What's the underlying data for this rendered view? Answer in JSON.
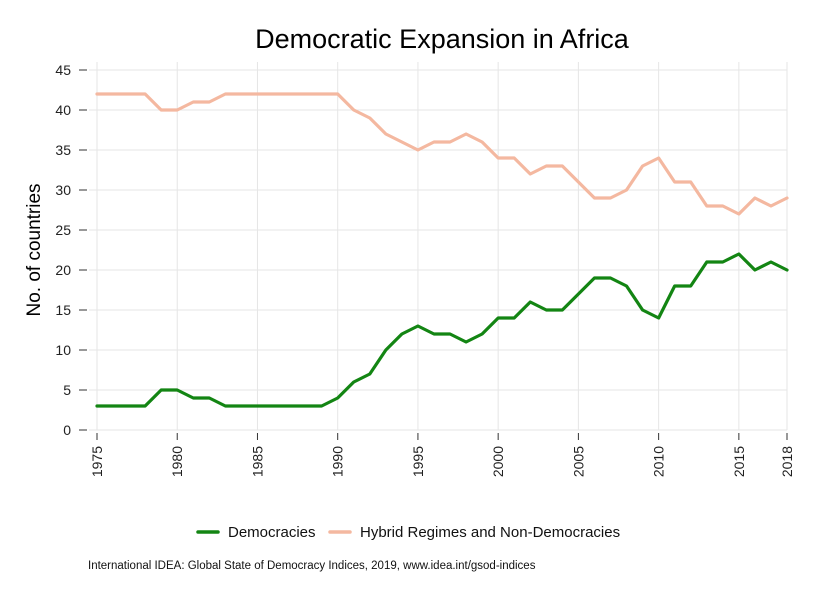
{
  "chart_data": {
    "type": "line",
    "title": "Democratic Expansion in Africa",
    "xlabel": "",
    "ylabel": "No. of countries",
    "xlim": [
      1975,
      2018
    ],
    "ylim": [
      0,
      45
    ],
    "y_ticks": [
      0,
      5,
      10,
      15,
      20,
      25,
      30,
      35,
      40,
      45
    ],
    "x_ticks": [
      1975,
      1980,
      1985,
      1990,
      1995,
      2000,
      2005,
      2010,
      2015,
      2018
    ],
    "grid": true,
    "legend_position": "bottom",
    "x": [
      1975,
      1976,
      1977,
      1978,
      1979,
      1980,
      1981,
      1982,
      1983,
      1984,
      1985,
      1986,
      1987,
      1988,
      1989,
      1990,
      1991,
      1992,
      1993,
      1994,
      1995,
      1996,
      1997,
      1998,
      1999,
      2000,
      2001,
      2002,
      2003,
      2004,
      2005,
      2006,
      2007,
      2008,
      2009,
      2010,
      2011,
      2012,
      2013,
      2014,
      2015,
      2016,
      2017,
      2018
    ],
    "series": [
      {
        "name": "Democracies",
        "color": "#138513",
        "values": [
          3,
          3,
          3,
          3,
          5,
          5,
          4,
          4,
          3,
          3,
          3,
          3,
          3,
          3,
          3,
          4,
          6,
          7,
          10,
          12,
          13,
          12,
          12,
          11,
          12,
          14,
          14,
          16,
          15,
          15,
          17,
          19,
          19,
          18,
          15,
          14,
          18,
          18,
          21,
          21,
          22,
          20,
          21,
          20
        ]
      },
      {
        "name": "Hybrid Regimes and Non-Democracies",
        "color": "#f4b8a0",
        "values": [
          42,
          42,
          42,
          42,
          40,
          40,
          41,
          41,
          42,
          42,
          42,
          42,
          42,
          42,
          42,
          42,
          40,
          39,
          37,
          36,
          35,
          36,
          36,
          37,
          36,
          34,
          34,
          32,
          33,
          33,
          31,
          29,
          29,
          30,
          33,
          34,
          31,
          31,
          28,
          28,
          27,
          29,
          28,
          29
        ]
      }
    ]
  },
  "source_note": "International IDEA: Global State of Democracy Indices, 2019, www.idea.int/gsod-indices"
}
